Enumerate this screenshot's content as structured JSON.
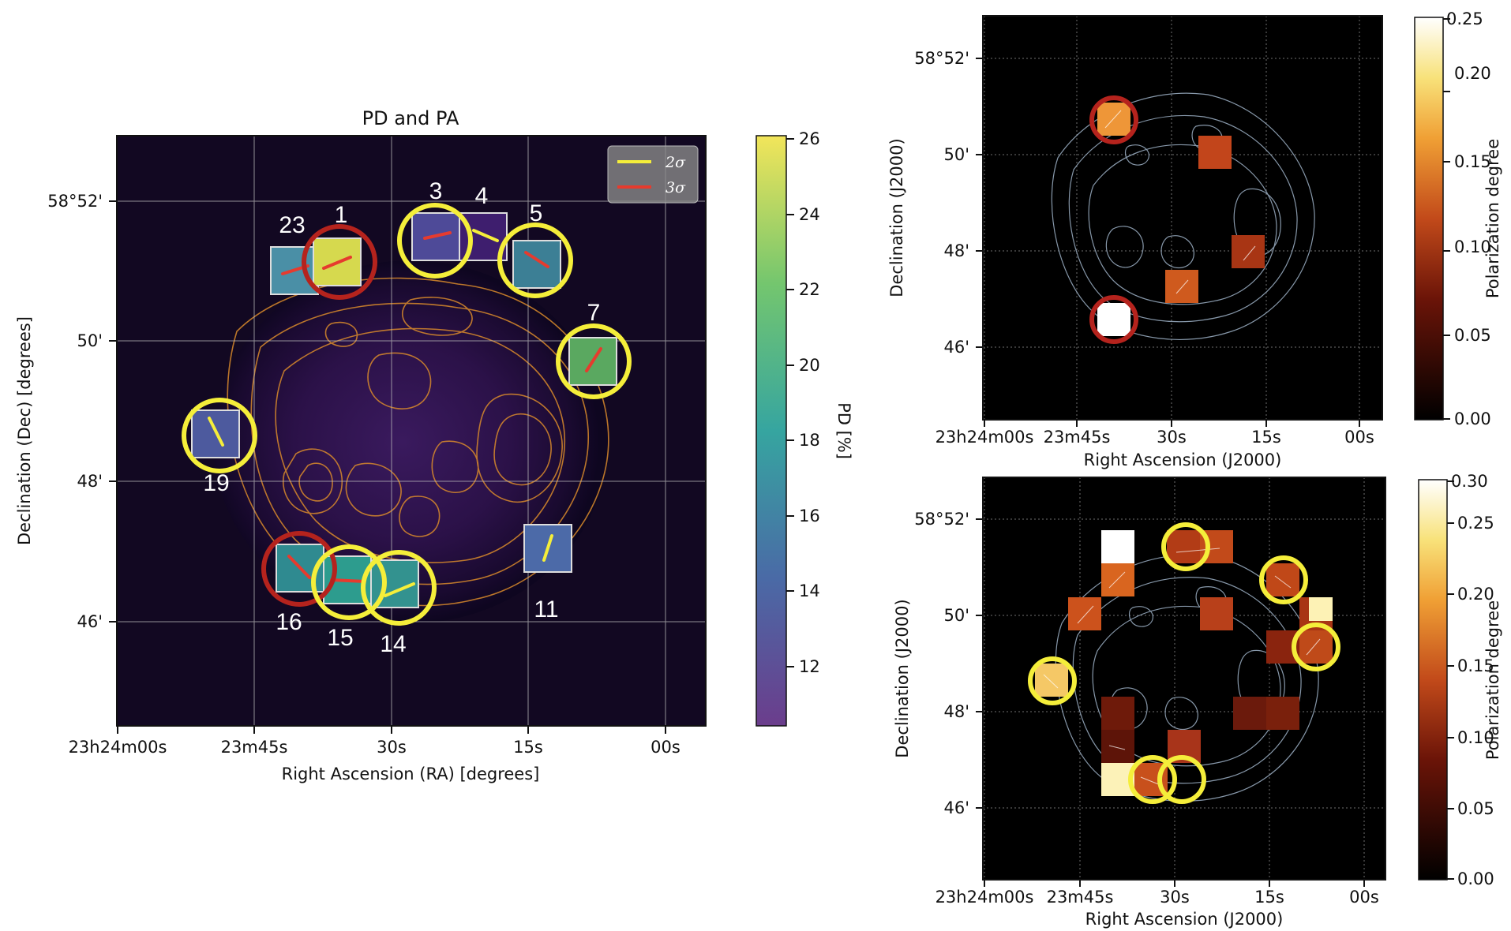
{
  "chart_data": [
    {
      "id": "left",
      "type": "heatmap",
      "title": "PD and PA",
      "xlabel": "Right Ascension (RA) [degrees]",
      "ylabel": "Declination (Dec) [degrees]",
      "x_ticks": [
        "23h24m00s",
        "23m45s",
        "30s",
        "15s",
        "00s"
      ],
      "y_ticks": [
        "58°52'",
        "50'",
        "48'",
        "46'"
      ],
      "colorbar": {
        "label": "PD [%]",
        "range": [
          10.5,
          26
        ],
        "ticks": [
          "26",
          "24",
          "22",
          "20",
          "18",
          "16",
          "14",
          "12"
        ]
      },
      "legend": [
        {
          "label": "2σ",
          "color": "#f5ee3a"
        },
        {
          "label": "3σ",
          "color": "#e63b2e"
        }
      ],
      "regions": [
        {
          "id": "23",
          "pd": 16.0,
          "significance": "3σ"
        },
        {
          "id": "1",
          "pd": 25.0,
          "significance": "3σ"
        },
        {
          "id": "3",
          "pd": 12.0,
          "significance": "3σ"
        },
        {
          "id": "4",
          "pd": 10.8,
          "significance": "2σ"
        },
        {
          "id": "5",
          "pd": 17.0,
          "significance": "3σ"
        },
        {
          "id": "7",
          "pd": 21.5,
          "significance": "3σ"
        },
        {
          "id": "19",
          "pd": 13.5,
          "significance": "2σ"
        },
        {
          "id": "11",
          "pd": 14.5,
          "significance": "2σ"
        },
        {
          "id": "16",
          "pd": 17.5,
          "significance": "3σ"
        },
        {
          "id": "15",
          "pd": 19.0,
          "significance": "3σ"
        },
        {
          "id": "14",
          "pd": 18.5,
          "significance": "2σ"
        }
      ]
    },
    {
      "id": "top-right",
      "type": "heatmap",
      "xlabel": "Right Ascension (J2000)",
      "ylabel": "Declination (J2000)",
      "x_ticks": [
        "23h24m00s",
        "23m45s",
        "30s",
        "15s",
        "00s"
      ],
      "y_ticks": [
        "58°52'",
        "50'",
        "48'",
        "46'"
      ],
      "colorbar": {
        "label": "Polarization degree",
        "range": [
          0,
          0.25
        ],
        "ticks": [
          "0.25",
          "0.20",
          "0.15",
          "0.10",
          "0.05",
          "0.00"
        ]
      },
      "pixels_pd": [
        0.16,
        0.1,
        0.085,
        0.11,
        0.25
      ]
    },
    {
      "id": "bottom-right",
      "type": "heatmap",
      "xlabel": "Right Ascension (J2000)",
      "ylabel": "Declination (J2000)",
      "x_ticks": [
        "23h24m00s",
        "23m45s",
        "30s",
        "15s",
        "00s"
      ],
      "y_ticks": [
        "58°52'",
        "50'",
        "48'",
        "46'"
      ],
      "colorbar": {
        "label": "Polarization degree",
        "range": [
          0,
          0.3
        ],
        "ticks": [
          "0.30",
          "0.25",
          "0.20",
          "0.15",
          "0.10",
          "0.05",
          "0.00"
        ]
      },
      "pixels_pd": [
        0.3,
        0.09,
        0.09,
        0.11,
        0.1,
        0.11,
        0.08,
        0.1,
        0.09,
        0.27,
        0.08,
        0.2,
        0.06,
        0.05,
        0.06,
        0.06,
        0.27,
        0.1,
        0.1
      ]
    }
  ]
}
